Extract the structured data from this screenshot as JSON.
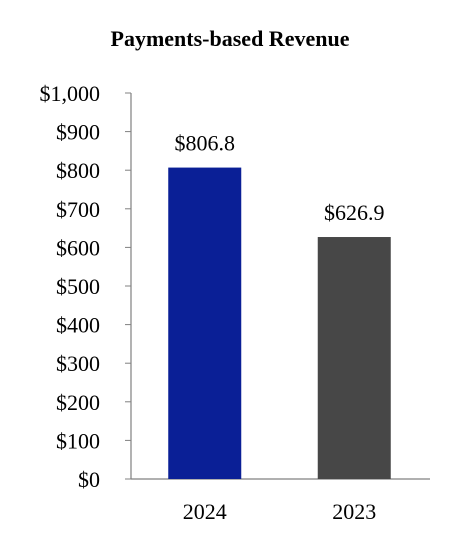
{
  "chart_data": {
    "type": "bar",
    "title": "Payments-based Revenue",
    "categories": [
      "2024",
      "2023"
    ],
    "values": [
      806.8,
      626.9
    ],
    "value_labels": [
      "$806.8",
      "$626.9"
    ],
    "bar_colors": [
      "#0a1f96",
      "#474747"
    ],
    "ylim": [
      0,
      1000
    ],
    "y_ticks": [
      0,
      100,
      200,
      300,
      400,
      500,
      600,
      700,
      800,
      900,
      1000
    ],
    "y_tick_labels": [
      "$0",
      "$100",
      "$200",
      "$300",
      "$400",
      "$500",
      "$600",
      "$700",
      "$800",
      "$900",
      "$1,000"
    ],
    "grid": false,
    "legend": "none",
    "xlabel": "",
    "ylabel": ""
  }
}
